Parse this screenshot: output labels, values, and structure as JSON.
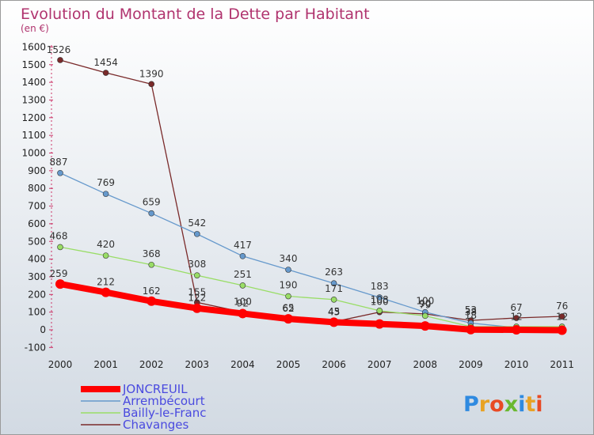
{
  "colors": {
    "background_top": "#ffffff",
    "background_bottom": "#d2dae3",
    "title": "#b0336e",
    "legend_text": "#4a4adf",
    "axis": "#cc3366"
  },
  "logo": {
    "text": "Proxiti"
  },
  "chart_data": {
    "type": "line",
    "title": "Evolution du Montant de la Dette par Habitant",
    "subtitle": "(en €)",
    "xlabel": "",
    "ylabel": "",
    "ylim": [
      -100,
      1600
    ],
    "y_ticks": [
      -100,
      0,
      100,
      200,
      300,
      400,
      500,
      600,
      700,
      800,
      900,
      1000,
      1100,
      1200,
      1300,
      1400,
      1500,
      1600
    ],
    "categories": [
      "2000",
      "2001",
      "2002",
      "2003",
      "2004",
      "2005",
      "2006",
      "2007",
      "2008",
      "2009",
      "2010",
      "2011"
    ],
    "grid": false,
    "legend_position": "bottom-left",
    "series": [
      {
        "name": "JONCREUIL",
        "color": "#ff0000",
        "line_style": "thick",
        "values": [
          259,
          212,
          162,
          122,
          92,
          62,
          43,
          33,
          22,
          1,
          0,
          -2
        ],
        "labels": [
          "259",
          "212",
          "162",
          "122",
          "92",
          "62",
          "43",
          "",
          "",
          "",
          "",
          ""
        ]
      },
      {
        "name": "Arrembécourt",
        "color": "#6699cc",
        "line_style": "thin",
        "values": [
          887,
          769,
          659,
          542,
          417,
          340,
          263,
          183,
          100,
          38,
          12,
          12
        ],
        "labels": [
          "887",
          "769",
          "659",
          "542",
          "417",
          "340",
          "263",
          "183",
          "100",
          "38",
          "12",
          "12"
        ]
      },
      {
        "name": "Bailly-le-Franc",
        "color": "#99dd66",
        "line_style": "thin",
        "values": [
          468,
          420,
          368,
          308,
          251,
          190,
          171,
          108,
          79,
          18,
          18,
          18
        ],
        "labels": [
          "468",
          "420",
          "368",
          "308",
          "251",
          "190",
          "171",
          "108",
          "79",
          "18",
          "",
          ""
        ]
      },
      {
        "name": "Chavanges",
        "color": "#7a2a2a",
        "line_style": "thin",
        "values": [
          1526,
          1454,
          1390,
          155,
          100,
          65,
          45,
          100,
          90,
          53,
          67,
          76
        ],
        "labels": [
          "1526",
          "1454",
          "1390",
          "155",
          "100",
          "65",
          "45",
          "100",
          "90",
          "53",
          "67",
          "76"
        ]
      }
    ]
  }
}
